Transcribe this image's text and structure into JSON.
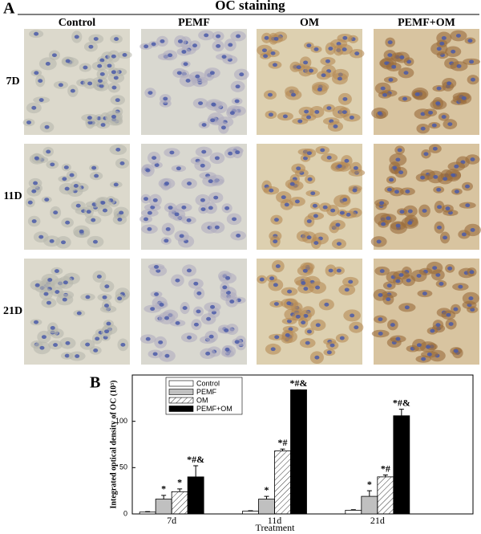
{
  "panel_a": {
    "label": "A",
    "title": "OC staining",
    "columns": [
      "Control",
      "PEMF",
      "OM",
      "PEMF+OM"
    ],
    "rows": [
      "7D",
      "11D",
      "21D"
    ]
  },
  "chart_data": {
    "type": "bar",
    "panel_label": "B",
    "y_label": "Integrated optical density of OC (10³)",
    "x_label": "Treatment",
    "categories": [
      "7d",
      "11d",
      "21d"
    ],
    "series": [
      {
        "name": "Control",
        "color": "#ffffff",
        "values": [
          2,
          3,
          4
        ],
        "errors": [
          0.5,
          0.5,
          0.5
        ],
        "markers": [
          null,
          null,
          null
        ]
      },
      {
        "name": "PEMF",
        "color": "#c0c0c0",
        "values": [
          16,
          16,
          19
        ],
        "errors": [
          4,
          3,
          6
        ],
        "markers": [
          "*",
          "*",
          "*"
        ]
      },
      {
        "name": "OM",
        "color": "#ffffff",
        "pattern": "hatch",
        "values": [
          24,
          68,
          40
        ],
        "errors": [
          3,
          2,
          2
        ],
        "markers": [
          "*",
          "*#",
          "*#"
        ]
      },
      {
        "name": "PEMF+OM",
        "color": "#000000",
        "values": [
          40,
          134,
          106
        ],
        "errors": [
          12,
          0,
          7
        ],
        "markers": [
          "*#&",
          "*#&",
          "*#&"
        ]
      }
    ],
    "ylim": [
      0,
      150
    ],
    "yticks": [
      0,
      50,
      100
    ],
    "legend": "top-left"
  }
}
